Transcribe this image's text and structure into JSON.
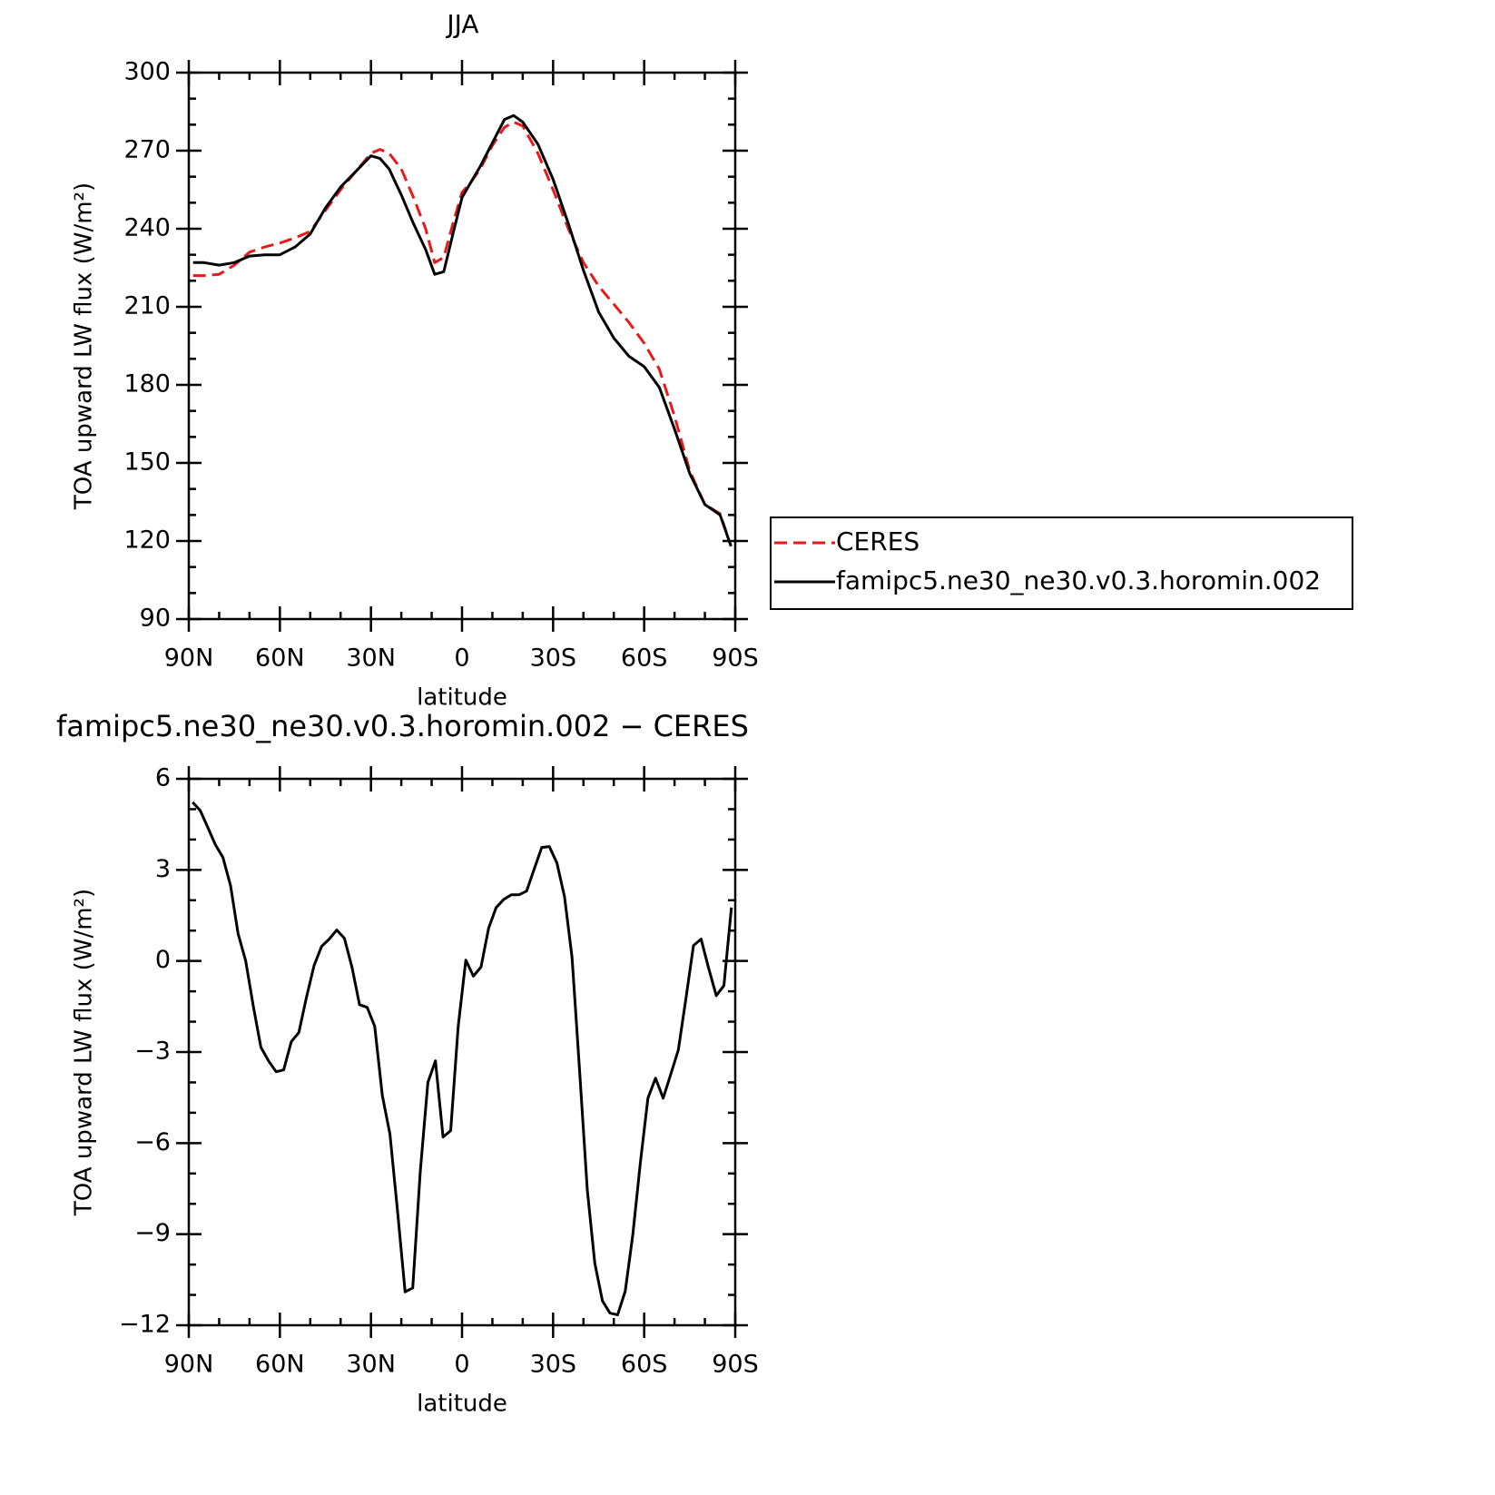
{
  "chart_data": [
    {
      "type": "line",
      "title": "JJA",
      "xlabel": "latitude",
      "ylabel": "TOA upward LW flux (W/m²)",
      "xlim": [
        90,
        -90
      ],
      "xticks": [
        {
          "value": 90,
          "label": "90N"
        },
        {
          "value": 60,
          "label": "60N"
        },
        {
          "value": 30,
          "label": "30N"
        },
        0,
        {
          "value": -30,
          "label": "30S"
        },
        {
          "value": -60,
          "label": "60S"
        },
        {
          "value": -90,
          "label": "90S"
        }
      ],
      "xminorticks": [
        80,
        70,
        50,
        40,
        20,
        10,
        -10,
        -20,
        -40,
        -50,
        -70,
        -80
      ],
      "ylim": [
        90,
        300
      ],
      "yticks": [
        90,
        120,
        150,
        180,
        210,
        240,
        270,
        300
      ],
      "yminorticks": [
        100,
        110,
        130,
        140,
        160,
        170,
        190,
        200,
        220,
        230,
        250,
        260,
        280,
        290
      ],
      "legend": "right",
      "x": [
        88.6,
        85,
        80,
        75,
        70,
        65,
        60,
        55,
        50,
        45,
        40,
        35,
        30,
        27,
        24,
        20,
        16,
        12,
        9,
        6,
        3,
        0,
        -3,
        -6,
        -10,
        -14,
        -17,
        -20,
        -25,
        -30,
        -35,
        -40,
        -45,
        -50,
        -55,
        -60,
        -65,
        -70,
        -75,
        -80,
        -85,
        -88.6
      ],
      "series": [
        {
          "name": "CERES",
          "color": "#e8191a",
          "dash": true,
          "values": [
            222,
            222,
            222.5,
            226,
            231,
            233,
            234.5,
            236.5,
            239,
            247,
            255,
            262,
            269,
            270.5,
            269,
            263,
            252,
            240,
            227,
            229,
            242,
            254,
            258,
            263,
            272,
            279,
            281,
            279.5,
            269,
            255,
            240,
            227,
            218,
            211,
            204,
            196,
            186,
            168,
            147,
            134,
            130.5,
            118
          ]
        },
        {
          "name": "famipc5.ne30_ne30.v0.3.horomin.002",
          "color": "#000000",
          "dash": false,
          "values": [
            227,
            227,
            226,
            227,
            229.5,
            230,
            230,
            233,
            238,
            248,
            256,
            262,
            268,
            267,
            263,
            253,
            242,
            232,
            222.5,
            223.5,
            238,
            252,
            258,
            264,
            273,
            282,
            283.5,
            281,
            272.5,
            259,
            242,
            224,
            208,
            198,
            191,
            187,
            179,
            163,
            146,
            134,
            130,
            118
          ]
        }
      ]
    },
    {
      "type": "line",
      "title": "famipc5.ne30_ne30.v0.3.horomin.002 − CERES",
      "xlabel": "latitude",
      "ylabel": "TOA upward LW flux (W/m²)",
      "xlim": [
        90,
        -90
      ],
      "xticks": [
        {
          "value": 90,
          "label": "90N"
        },
        {
          "value": 60,
          "label": "60N"
        },
        {
          "value": 30,
          "label": "30N"
        },
        0,
        {
          "value": -30,
          "label": "30S"
        },
        {
          "value": -60,
          "label": "60S"
        },
        {
          "value": -90,
          "label": "90S"
        }
      ],
      "xminorticks": [
        80,
        70,
        50,
        40,
        20,
        10,
        -10,
        -20,
        -40,
        -50,
        -70,
        -80
      ],
      "ylim": [
        -12,
        6
      ],
      "yticks": [
        {
          "value": -12,
          "label": "−12"
        },
        {
          "value": -9,
          "label": "−9"
        },
        {
          "value": -6,
          "label": "−6"
        },
        {
          "value": -3,
          "label": "−3"
        },
        0,
        3,
        6
      ],
      "yminorticks": [
        -11,
        -10,
        -8,
        -7,
        -5,
        -4,
        -2,
        -1,
        1,
        2,
        4,
        5
      ],
      "x": [
        88.75,
        86.25,
        83.75,
        81.25,
        78.75,
        76.25,
        73.75,
        71.25,
        68.75,
        66.25,
        63.75,
        61.25,
        58.75,
        56.25,
        53.75,
        51.25,
        48.75,
        46.25,
        43.75,
        41.25,
        38.75,
        36.25,
        33.75,
        31.25,
        28.75,
        26.25,
        23.75,
        21.25,
        18.75,
        16.25,
        13.75,
        11.25,
        8.75,
        6.25,
        3.75,
        1.25,
        -1.25,
        -3.75,
        -6.25,
        -8.75,
        -11.25,
        -13.75,
        -16.25,
        -18.75,
        -21.25,
        -23.75,
        -26.25,
        -28.75,
        -31.25,
        -33.75,
        -36.25,
        -38.75,
        -41.25,
        -43.75,
        -46.25,
        -48.75,
        -51.25,
        -53.75,
        -56.25,
        -58.75,
        -61.25,
        -63.75,
        -66.25,
        -68.75,
        -71.25,
        -73.75,
        -76.25,
        -78.75,
        -81.25,
        -83.75,
        -86.25,
        -88.75
      ],
      "series": [
        {
          "name": "famipc5.ne30_ne30.v0.3.horomin.002 − CERES",
          "color": "#000000",
          "dash": false,
          "values": [
            5.23,
            4.96,
            4.4,
            3.83,
            3.41,
            2.48,
            0.9,
            0,
            -1.5,
            -2.84,
            -3.29,
            -3.65,
            -3.59,
            -2.66,
            -2.36,
            -1.2,
            -0.15,
            0.48,
            0.72,
            1.02,
            0.75,
            -0.21,
            -1.44,
            -1.53,
            -2.15,
            -4.43,
            -5.71,
            -8.22,
            -10.9,
            -10.77,
            -6.94,
            -4.0,
            -3.29,
            -5.8,
            -5.59,
            -2.15,
            0.03,
            -0.5,
            -0.2,
            1.08,
            1.76,
            2.03,
            2.18,
            2.18,
            2.3,
            3.02,
            3.74,
            3.77,
            3.23,
            2.12,
            0.12,
            -3.65,
            -7.54,
            -9.96,
            -11.2,
            -11.6,
            -11.66,
            -10.88,
            -9.03,
            -6.64,
            -4.52,
            -3.86,
            -4.52,
            -3.74,
            -2.93,
            -1.23,
            0.51,
            0.72,
            -0.24,
            -1.14,
            -0.81,
            1.76
          ]
        }
      ]
    }
  ]
}
